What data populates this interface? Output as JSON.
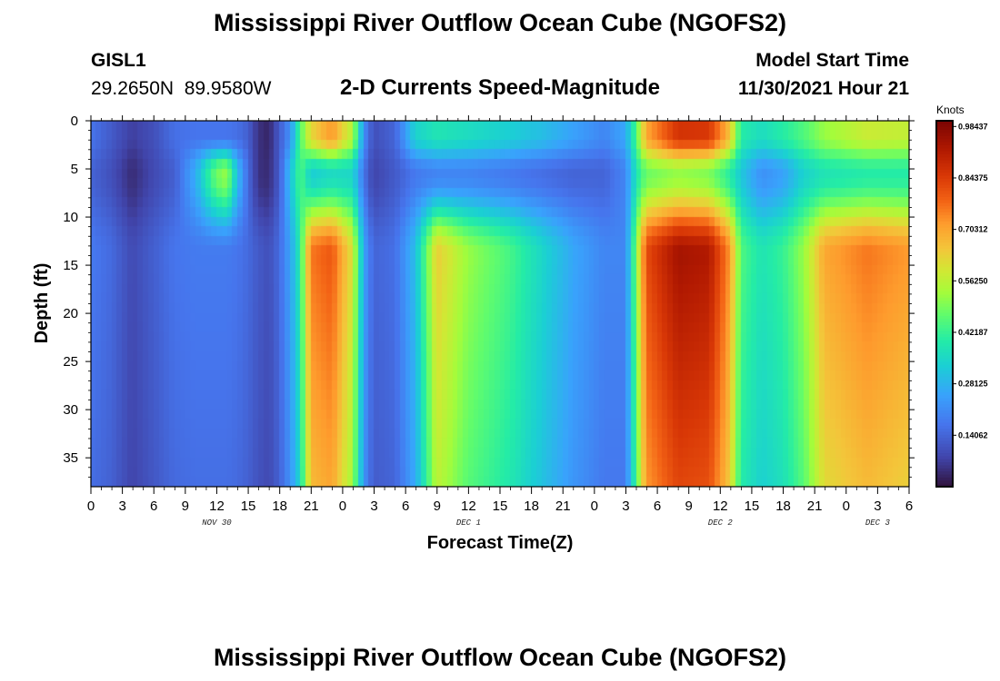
{
  "header": {
    "main_title": "Mississippi River Outflow Ocean Cube (NGOFS2)",
    "station_name": "GISL1",
    "station_coords": "29.2650N  89.9580W",
    "plot_title": "2-D Currents Speed-Magnitude",
    "model_start_label": "Model Start Time",
    "model_start_value": "11/30/2021 Hour 21"
  },
  "footer": {
    "second_title": "Mississippi River Outflow Ocean Cube (NGOFS2)"
  },
  "chart_data": {
    "type": "heatmap",
    "title": "2-D Currents Speed-Magnitude",
    "xlabel": "Forecast Time(Z)",
    "ylabel": "Depth (ft)",
    "x_range_hours": [
      0,
      78
    ],
    "x_tick_step_hours": 3,
    "x_tick_labels": [
      "0",
      "3",
      "6",
      "9",
      "12",
      "15",
      "18",
      "21",
      "0",
      "3",
      "6",
      "9",
      "12",
      "15",
      "18",
      "21",
      "0",
      "3",
      "6",
      "9",
      "12",
      "15",
      "18",
      "21",
      "0",
      "3",
      "6"
    ],
    "date_labels": [
      {
        "text": "NOV 30",
        "hour": 12
      },
      {
        "text": "DEC 1",
        "hour": 36
      },
      {
        "text": "DEC 2",
        "hour": 60
      },
      {
        "text": "DEC 3",
        "hour": 75
      }
    ],
    "y_range_ft": [
      0,
      38
    ],
    "y_ticks": [
      0,
      5,
      10,
      15,
      20,
      25,
      30,
      35
    ],
    "y_tick_labels": [
      "0",
      "5",
      "10",
      "15",
      "20",
      "25",
      "30",
      "35"
    ],
    "colorbar": {
      "unit": "Knots",
      "min": 0,
      "max": 1.0,
      "tick_values": [
        0.14062,
        0.28125,
        0.42187,
        0.5625,
        0.70312,
        0.84375,
        0.98437
      ],
      "tick_labels": [
        "0.14062",
        "0.28125",
        "0.42187",
        "0.56250",
        "0.70312",
        "0.84375",
        "0.98437"
      ]
    },
    "speed_profiles": [
      {
        "hour": 0,
        "surface": 0.17,
        "mid": 0.14,
        "bottom": 0.18
      },
      {
        "hour": 2,
        "surface": 0.12,
        "mid": 0.1,
        "bottom": 0.15
      },
      {
        "hour": 4,
        "surface": 0.07,
        "mid": 0.04,
        "bottom": 0.09
      },
      {
        "hour": 6,
        "surface": 0.1,
        "mid": 0.09,
        "bottom": 0.13
      },
      {
        "hour": 8,
        "surface": 0.16,
        "mid": 0.13,
        "bottom": 0.17
      },
      {
        "hour": 10,
        "surface": 0.17,
        "mid": 0.27,
        "bottom": 0.18
      },
      {
        "hour": 12,
        "surface": 0.17,
        "mid": 0.48,
        "bottom": 0.18
      },
      {
        "hour": 13,
        "surface": 0.17,
        "mid": 0.52,
        "bottom": 0.18
      },
      {
        "hour": 14,
        "surface": 0.16,
        "mid": 0.3,
        "bottom": 0.17
      },
      {
        "hour": 15,
        "surface": 0.13,
        "mid": 0.15,
        "bottom": 0.15
      },
      {
        "hour": 16,
        "surface": 0.05,
        "mid": 0.05,
        "bottom": 0.12
      },
      {
        "hour": 17,
        "surface": 0.03,
        "mid": 0.04,
        "bottom": 0.1
      },
      {
        "hour": 18,
        "surface": 0.12,
        "mid": 0.12,
        "bottom": 0.15
      },
      {
        "hour": 19,
        "surface": 0.22,
        "mid": 0.3,
        "bottom": 0.25
      },
      {
        "hour": 20,
        "surface": 0.45,
        "mid": 0.45,
        "bottom": 0.4
      },
      {
        "hour": 21,
        "surface": 0.62,
        "mid": 0.33,
        "bottom": 0.76
      },
      {
        "hour": 23,
        "surface": 0.72,
        "mid": 0.36,
        "bottom": 0.8
      },
      {
        "hour": 25,
        "surface": 0.55,
        "mid": 0.35,
        "bottom": 0.6
      },
      {
        "hour": 26,
        "surface": 0.22,
        "mid": 0.17,
        "bottom": 0.26
      },
      {
        "hour": 27,
        "surface": 0.1,
        "mid": 0.08,
        "bottom": 0.14
      },
      {
        "hour": 29,
        "surface": 0.14,
        "mid": 0.12,
        "bottom": 0.16
      },
      {
        "hour": 31,
        "surface": 0.34,
        "mid": 0.18,
        "bottom": 0.3
      },
      {
        "hour": 33,
        "surface": 0.38,
        "mid": 0.2,
        "bottom": 0.64
      },
      {
        "hour": 36,
        "surface": 0.36,
        "mid": 0.2,
        "bottom": 0.52
      },
      {
        "hour": 40,
        "surface": 0.33,
        "mid": 0.18,
        "bottom": 0.44
      },
      {
        "hour": 43,
        "surface": 0.3,
        "mid": 0.16,
        "bottom": 0.35
      },
      {
        "hour": 46,
        "surface": 0.25,
        "mid": 0.14,
        "bottom": 0.26
      },
      {
        "hour": 49,
        "surface": 0.2,
        "mid": 0.14,
        "bottom": 0.2
      },
      {
        "hour": 51,
        "surface": 0.26,
        "mid": 0.2,
        "bottom": 0.2
      },
      {
        "hour": 52,
        "surface": 0.45,
        "mid": 0.38,
        "bottom": 0.5
      },
      {
        "hour": 53,
        "surface": 0.7,
        "mid": 0.48,
        "bottom": 0.82
      },
      {
        "hour": 56,
        "surface": 0.86,
        "mid": 0.52,
        "bottom": 0.94
      },
      {
        "hour": 59,
        "surface": 0.85,
        "mid": 0.5,
        "bottom": 0.92
      },
      {
        "hour": 61,
        "surface": 0.65,
        "mid": 0.4,
        "bottom": 0.72
      },
      {
        "hour": 62,
        "surface": 0.4,
        "mid": 0.32,
        "bottom": 0.45
      },
      {
        "hour": 64,
        "surface": 0.36,
        "mid": 0.22,
        "bottom": 0.38
      },
      {
        "hour": 66,
        "surface": 0.4,
        "mid": 0.25,
        "bottom": 0.42
      },
      {
        "hour": 68,
        "surface": 0.45,
        "mid": 0.34,
        "bottom": 0.52
      },
      {
        "hour": 70,
        "surface": 0.52,
        "mid": 0.38,
        "bottom": 0.7
      },
      {
        "hour": 74,
        "surface": 0.58,
        "mid": 0.4,
        "bottom": 0.76
      },
      {
        "hour": 78,
        "surface": 0.57,
        "mid": 0.4,
        "bottom": 0.72
      }
    ]
  }
}
